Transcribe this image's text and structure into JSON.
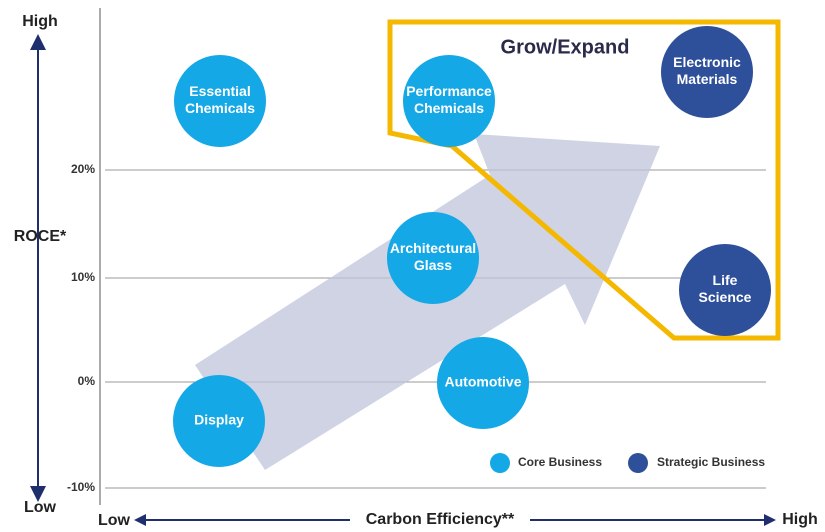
{
  "axes": {
    "y_high": "High",
    "y_low": "Low",
    "y_title": "ROCE*",
    "x_low": "Low",
    "x_high": "High",
    "x_title": "Carbon Efficiency**",
    "y_ticks": [
      "20%",
      "10%",
      "0%",
      "-10%"
    ]
  },
  "region_label": "Grow/Expand",
  "nodes": [
    {
      "label": [
        "Essential",
        "Chemicals"
      ],
      "group": "core"
    },
    {
      "label": [
        "Performance",
        "Chemicals"
      ],
      "group": "core"
    },
    {
      "label": [
        "Electronic",
        "Materials"
      ],
      "group": "strategic"
    },
    {
      "label": [
        "Architectural",
        "Glass"
      ],
      "group": "core"
    },
    {
      "label": [
        "Life",
        "Science"
      ],
      "group": "strategic"
    },
    {
      "label": [
        "Automotive"
      ],
      "group": "core"
    },
    {
      "label": [
        "Display"
      ],
      "group": "core"
    }
  ],
  "legend": [
    {
      "label": "Core Business",
      "group": "core"
    },
    {
      "label": "Strategic Business",
      "group": "strategic"
    }
  ]
}
